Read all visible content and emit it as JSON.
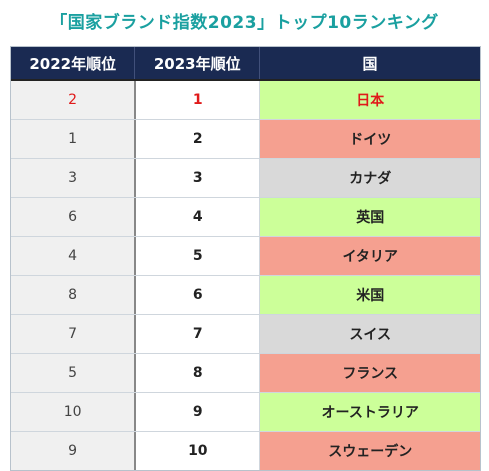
{
  "title": "「国家ブランド指数2023」トップ10ランキング",
  "headers": [
    "2022年順位",
    "2023年順位",
    "国"
  ],
  "colors": {
    "green": "#ccff99",
    "red": "#f5a090",
    "gray": "#d9d9d9",
    "header": "#1a2a52",
    "title": "#1aa0a0"
  },
  "rows": [
    {
      "prev": "2",
      "curr": "1",
      "country": "日本",
      "color": "#ccff99"
    },
    {
      "prev": "1",
      "curr": "2",
      "country": "ドイツ",
      "color": "#f5a090"
    },
    {
      "prev": "3",
      "curr": "3",
      "country": "カナダ",
      "color": "#d9d9d9"
    },
    {
      "prev": "6",
      "curr": "4",
      "country": "英国",
      "color": "#ccff99"
    },
    {
      "prev": "4",
      "curr": "5",
      "country": "イタリア",
      "color": "#f5a090"
    },
    {
      "prev": "8",
      "curr": "6",
      "country": "米国",
      "color": "#ccff99"
    },
    {
      "prev": "7",
      "curr": "7",
      "country": "スイス",
      "color": "#d9d9d9"
    },
    {
      "prev": "5",
      "curr": "8",
      "country": "フランス",
      "color": "#f5a090"
    },
    {
      "prev": "10",
      "curr": "9",
      "country": "オーストラリア",
      "color": "#ccff99"
    },
    {
      "prev": "9",
      "curr": "10",
      "country": "スウェーデン",
      "color": "#f5a090"
    }
  ]
}
